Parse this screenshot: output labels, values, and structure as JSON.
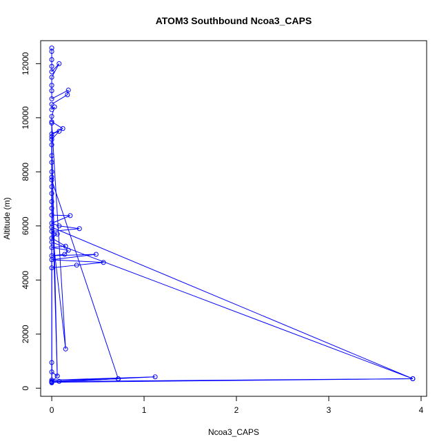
{
  "chart_data": {
    "type": "line",
    "title": "ATOM3 Southbound Ncoa3_CAPS",
    "xlabel": "Ncoa3_CAPS",
    "ylabel": "Altitude (m)",
    "xlim": [
      -0.12,
      4.06
    ],
    "ylim": [
      -300,
      12850
    ],
    "xticks": [
      0,
      1,
      2,
      3,
      4
    ],
    "yticks": [
      0,
      2000,
      4000,
      6000,
      8000,
      10000,
      12000
    ],
    "grid": false,
    "legend": "none",
    "colors": {
      "series": "#0000ff",
      "axis": "#000000"
    },
    "series": [
      {
        "marker": "open-circle",
        "points": [
          [
            0.0,
            12580
          ],
          [
            0.0,
            12450
          ],
          [
            0.0,
            12150
          ],
          [
            0.0,
            11900
          ],
          [
            0.0,
            11700
          ],
          [
            0.08,
            12000
          ],
          [
            0.0,
            11500
          ],
          [
            0.0,
            11200
          ],
          [
            0.0,
            11000
          ],
          [
            0.0,
            10700
          ],
          [
            0.18,
            11020
          ],
          [
            0.17,
            10850
          ],
          [
            0.0,
            10500
          ],
          [
            0.0,
            10300
          ],
          [
            0.03,
            10400
          ],
          [
            0.0,
            10050
          ],
          [
            0.0,
            9850
          ],
          [
            0.12,
            9600
          ],
          [
            0.0,
            9400
          ],
          [
            0.08,
            9500
          ],
          [
            0.0,
            9200
          ],
          [
            0.0,
            9000
          ],
          [
            0.0,
            8600
          ],
          [
            0.0,
            8350
          ],
          [
            0.0,
            8000
          ],
          [
            0.0,
            7800
          ],
          [
            0.0,
            7450
          ],
          [
            0.0,
            7200
          ],
          [
            0.0,
            6900
          ],
          [
            0.0,
            6650
          ],
          [
            0.0,
            6400
          ],
          [
            0.2,
            6380
          ],
          [
            0.0,
            6100
          ],
          [
            0.08,
            6000
          ],
          [
            0.3,
            5900
          ],
          [
            0.0,
            5800
          ],
          [
            0.06,
            5700
          ],
          [
            0.0,
            5550
          ],
          [
            0.15,
            5250
          ],
          [
            0.0,
            5200
          ],
          [
            0.18,
            5100
          ],
          [
            0.14,
            4950
          ],
          [
            0.0,
            4900
          ],
          [
            0.48,
            4950
          ],
          [
            0.0,
            4750
          ],
          [
            0.56,
            4650
          ],
          [
            0.27,
            4550
          ],
          [
            0.0,
            4450
          ],
          [
            0.0,
            250
          ],
          [
            0.0,
            950
          ],
          [
            0.0,
            600
          ],
          [
            0.06,
            450
          ],
          [
            0.0,
            230
          ],
          [
            0.72,
            350
          ],
          [
            0.0,
            300
          ],
          [
            1.12,
            420
          ],
          [
            0.08,
            250
          ],
          [
            3.91,
            350
          ],
          [
            0.0,
            5400
          ],
          [
            0.0,
            220
          ],
          [
            3.91,
            350
          ],
          [
            0.0,
            5950
          ],
          [
            0.15,
            1450
          ],
          [
            0.0,
            9800
          ],
          [
            0.0,
            250
          ],
          [
            0.72,
            350
          ],
          [
            0.0,
            7700
          ],
          [
            0.06,
            450
          ],
          [
            0.0,
            9300
          ],
          [
            0.0,
            200
          ]
        ]
      }
    ]
  }
}
